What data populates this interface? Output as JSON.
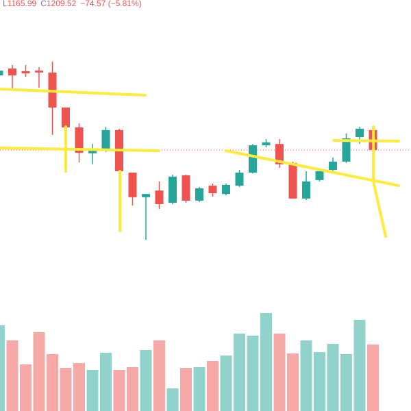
{
  "chart_data": {
    "type": "candlestick",
    "header": {
      "items": [
        {
          "label": "L",
          "value": "1165.99"
        },
        {
          "label": "C",
          "value": "1209.52"
        }
      ],
      "change": "−74.57 (−5.81%)"
    },
    "open": [
      1488,
      1514,
      1504,
      1506,
      1499,
      1368,
      1294,
      1197,
      1212,
      1284,
      1125,
      1033,
      1058,
      1012,
      1115,
      1020,
      1076,
      1045,
      1076,
      1125,
      1227,
      1232,
      1161,
      1028,
      1097,
      1135,
      1166,
      1258,
      1284.09
    ],
    "high": [
      1514,
      1527,
      1527,
      1519,
      1540,
      1368,
      1309,
      1232,
      1296,
      1289,
      1125,
      1045,
      1092,
      1117,
      1117,
      1071,
      1084,
      1084,
      1135,
      1232,
      1250,
      1250,
      1166,
      1130,
      1135,
      1181,
      1271,
      1296,
      1296
    ],
    "low": [
      1483,
      1437,
      1483,
      1442,
      1266,
      1143,
      1163,
      1156,
      1202,
      1099,
      1002,
      874,
      989,
      1007,
      1012,
      1015,
      1035,
      1040,
      1071,
      1122,
      1220,
      1143,
      1028,
      1022,
      1092,
      1130,
      1161,
      1232,
      1165.99
    ],
    "close": [
      1506,
      1488,
      1496,
      1499,
      1368,
      1294,
      1199,
      1212,
      1284,
      1130,
      1033,
      1045,
      1007,
      1110,
      1020,
      1066,
      1048,
      1079,
      1125,
      1227,
      1238,
      1156,
      1028,
      1092,
      1130,
      1166,
      1253,
      1289,
      1209.52
    ],
    "volume": [
      125,
      103,
      68,
      115,
      83,
      63,
      70,
      60,
      85,
      60,
      64,
      89,
      103,
      33,
      63,
      64,
      73,
      81,
      113,
      110,
      143,
      113,
      84,
      103,
      86,
      98,
      83,
      133,
      97
    ],
    "ylim": [
      746,
      1770
    ],
    "volume_lim": [
      0,
      160
    ],
    "up_color": "#26a69a",
    "down_color": "#ef5350",
    "up_volume_color": "#92d2cc",
    "down_volume_color": "#f7a9a7"
  }
}
